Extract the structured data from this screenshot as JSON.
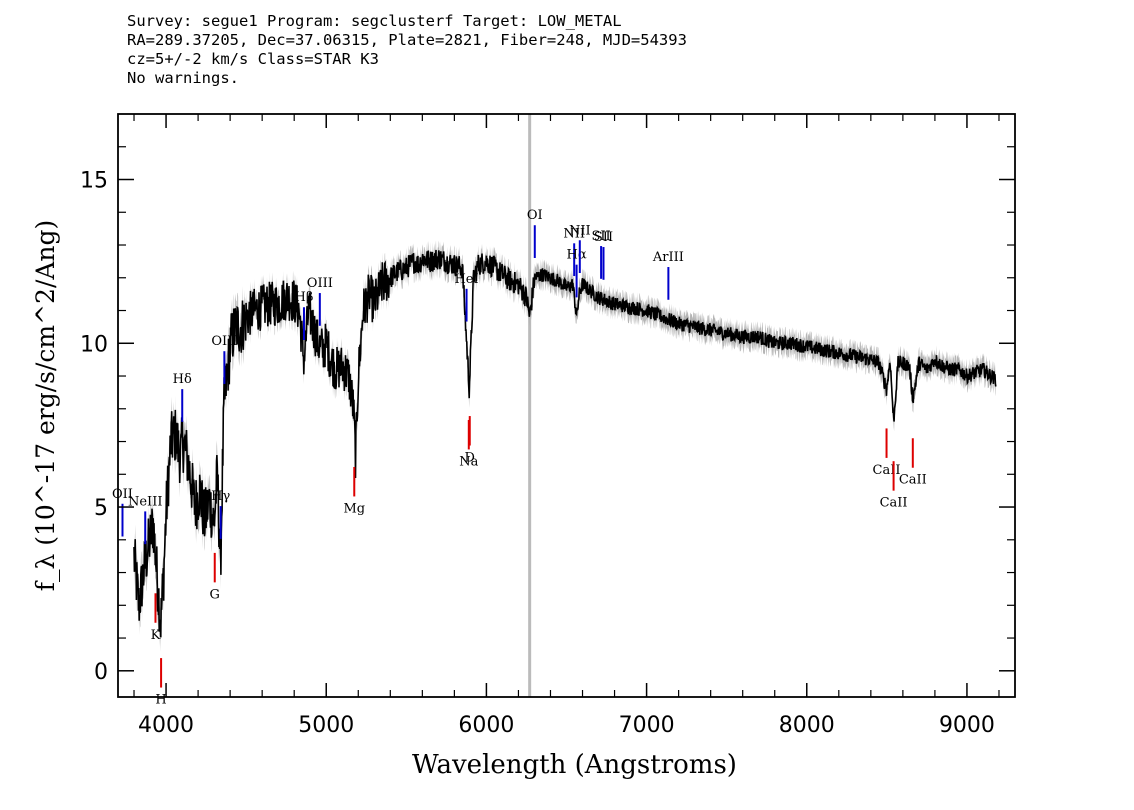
{
  "header": {
    "line1": "Survey: segue1 Program: segclusterf Target: LOW_METAL",
    "line2": "RA=289.37205, Dec=37.06315, Plate=2821, Fiber=248, MJD=54393",
    "line3": "cz=5+/-2 km/s Class=STAR K3",
    "line4": "No warnings."
  },
  "colors": {
    "flux": "#000000",
    "error_band": "#b5b5b5",
    "emission_lines": "#0000cc",
    "absorption_lines": "#dd0000",
    "marker_line": "#bbbbbb"
  },
  "chart_data": {
    "type": "line",
    "xlabel": "Wavelength (Angstroms)",
    "ylabel": "f_λ (10^-17 erg/s/cm^2/Ang)",
    "xlim": [
      3700,
      9300
    ],
    "ylim": [
      -0.8,
      17
    ],
    "x_ticks": [
      4000,
      5000,
      6000,
      7000,
      8000,
      9000
    ],
    "y_ticks": [
      0,
      5,
      10,
      15
    ],
    "x_tick_labels": [
      "4000",
      "5000",
      "6000",
      "7000",
      "8000",
      "9000"
    ],
    "y_tick_labels": [
      "0",
      "5",
      "10",
      "15"
    ],
    "vertical_marker_x": 6270,
    "series": [
      {
        "x": [
          3800,
          3830,
          3860,
          3890,
          3920,
          3935,
          3950,
          3968,
          3985,
          4000,
          4030,
          4060,
          4090,
          4101,
          4120,
          4150,
          4180,
          4210,
          4240,
          4270,
          4300,
          4320,
          4340,
          4361,
          4380,
          4410,
          4440,
          4470,
          4500,
          4550,
          4600,
          4650,
          4700,
          4750,
          4800,
          4830,
          4861,
          4890,
          4920,
          4950,
          4980,
          5000,
          5030,
          5060,
          5100,
          5140,
          5170,
          5183,
          5200,
          5230,
          5270,
          5300,
          5350,
          5400,
          5450,
          5500,
          5550,
          5580,
          5600,
          5650,
          5700,
          5750,
          5800,
          5850,
          5893,
          5920,
          5950,
          6000,
          6050,
          6100,
          6150,
          6200,
          6250,
          6270,
          6300,
          6350,
          6400,
          6450,
          6500,
          6540,
          6563,
          6580,
          6600,
          6650,
          6700,
          6750,
          6800,
          6900,
          7000,
          7100,
          7200,
          7300,
          7400,
          7500,
          7600,
          7700,
          7800,
          7900,
          8000,
          8100,
          8200,
          8300,
          8400,
          8450,
          8498,
          8520,
          8542,
          8570,
          8600,
          8640,
          8662,
          8700,
          8750,
          8800,
          8850,
          8900,
          8950,
          9000,
          9050,
          9100,
          9150,
          9180
        ],
        "y": [
          3.5,
          2.0,
          3.0,
          3.8,
          4.5,
          3.5,
          2.5,
          1.5,
          3.0,
          4.8,
          7.0,
          7.2,
          6.5,
          7.0,
          6.8,
          6.0,
          5.0,
          5.5,
          4.6,
          5.2,
          4.5,
          6.0,
          3.2,
          8.0,
          9.0,
          10.2,
          10.5,
          10.5,
          10.8,
          11.0,
          11.1,
          11.2,
          11.2,
          11.4,
          11.3,
          11.0,
          9.5,
          11.0,
          10.5,
          10.0,
          9.8,
          10.0,
          9.5,
          9.2,
          9.3,
          9.0,
          8.0,
          6.5,
          9.0,
          11.0,
          11.5,
          11.2,
          11.8,
          12.0,
          12.2,
          12.3,
          12.5,
          12.4,
          12.6,
          12.5,
          12.6,
          12.5,
          12.4,
          12.3,
          8.6,
          12.0,
          12.4,
          12.5,
          12.3,
          12.1,
          11.9,
          11.8,
          11.4,
          10.8,
          12.0,
          12.1,
          12.0,
          11.9,
          11.7,
          11.8,
          10.8,
          11.5,
          11.8,
          11.6,
          11.4,
          11.3,
          11.2,
          11.1,
          11.0,
          10.8,
          10.6,
          10.5,
          10.4,
          10.3,
          10.2,
          10.2,
          10.0,
          10.0,
          9.9,
          9.8,
          9.7,
          9.6,
          9.5,
          9.4,
          8.6,
          9.5,
          7.6,
          9.4,
          9.4,
          9.3,
          8.3,
          9.4,
          9.2,
          9.5,
          9.3,
          9.2,
          9.2,
          9.0,
          9.1,
          9.2,
          9.0,
          8.9
        ]
      }
    ],
    "emission_lines": [
      {
        "label": "OII",
        "x": 3728
      },
      {
        "label": "NeIII",
        "x": 3870
      },
      {
        "label": "Hδ",
        "x": 4101
      },
      {
        "label": "Hγ",
        "x": 4341
      },
      {
        "label": "OIII",
        "x": 4364
      },
      {
        "label": "Hβ",
        "x": 4861
      },
      {
        "label": "OIII",
        "x": 4960
      },
      {
        "label": "HeI",
        "x": 5876
      },
      {
        "label": "OI",
        "x": 6302
      },
      {
        "label": "NII",
        "x": 6548
      },
      {
        "label": "Hα",
        "x": 6563
      },
      {
        "label": "NII",
        "x": 6583
      },
      {
        "label": "SII",
        "x": 6716
      },
      {
        "label": "SII",
        "x": 6731
      },
      {
        "label": "ArIII",
        "x": 7136
      }
    ],
    "absorption_lines": [
      {
        "label": "K",
        "x": 3934
      },
      {
        "label": "H",
        "x": 3969
      },
      {
        "label": "G",
        "x": 4304
      },
      {
        "label": "Mg",
        "x": 5175
      },
      {
        "label": "Na",
        "x": 5890
      },
      {
        "label": "D",
        "x": 5896
      },
      {
        "label": "CaII",
        "x": 8498
      },
      {
        "label": "CaII",
        "x": 8542
      },
      {
        "label": "CaII",
        "x": 8662
      }
    ]
  }
}
